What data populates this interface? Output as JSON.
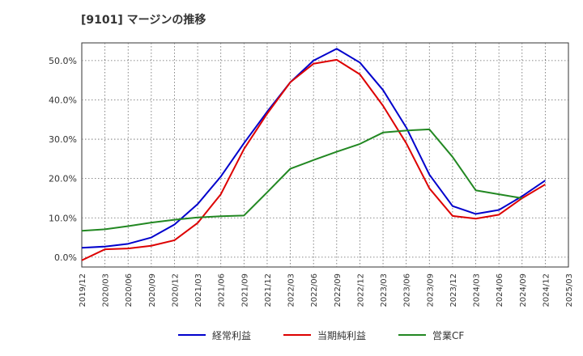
{
  "chart_data": {
    "type": "line",
    "title": "[9101]  マージンの推移",
    "x": [
      "2019/12",
      "2020/03",
      "2020/06",
      "2020/09",
      "2020/12",
      "2021/03",
      "2021/06",
      "2021/09",
      "2021/12",
      "2022/03",
      "2022/06",
      "2022/09",
      "2022/12",
      "2023/03",
      "2023/06",
      "2023/09",
      "2023/12",
      "2024/03",
      "2024/06",
      "2024/09",
      "2024/12",
      "2025/03"
    ],
    "ylim": [
      -2.5,
      54.5
    ],
    "yticks": [
      0,
      10,
      20,
      30,
      40,
      50
    ],
    "ytick_labels": [
      "0.0%",
      "10.0%",
      "20.0%",
      "30.0%",
      "40.0%",
      "50.0%"
    ],
    "grid": true,
    "legend": "bottom",
    "series": [
      {
        "name": "経常利益",
        "color": "#0000cc",
        "values": [
          2.4,
          2.7,
          3.4,
          5.0,
          8.3,
          13.5,
          20.5,
          29.0,
          37.0,
          44.5,
          50.0,
          53.0,
          49.5,
          42.5,
          33.0,
          21.0,
          13.0,
          11.0,
          12.0,
          15.5,
          19.5,
          null
        ]
      },
      {
        "name": "当期純利益",
        "color": "#dd0000",
        "values": [
          -0.8,
          2.0,
          2.2,
          2.9,
          4.3,
          8.7,
          16.0,
          27.5,
          36.5,
          44.5,
          49.2,
          50.2,
          46.5,
          38.5,
          29.0,
          17.5,
          10.5,
          9.8,
          10.8,
          15.0,
          18.5,
          null
        ]
      },
      {
        "name": "営業CF",
        "color": "#228822",
        "values": [
          6.7,
          7.1,
          7.9,
          8.8,
          9.5,
          10.1,
          10.4,
          10.6,
          16.5,
          22.5,
          24.7,
          26.8,
          28.8,
          31.7,
          32.2,
          32.5,
          25.5,
          17.0,
          16.0,
          15.0,
          null,
          null
        ]
      }
    ]
  }
}
